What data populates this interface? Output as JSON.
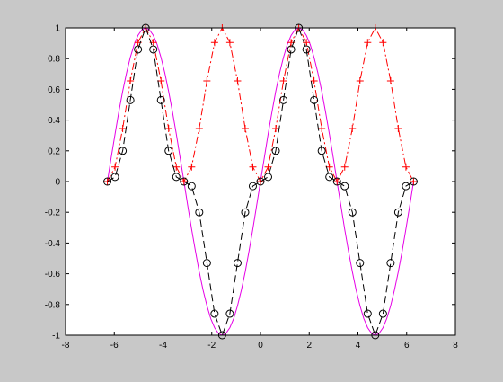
{
  "chart_data": {
    "type": "line",
    "title": "",
    "xlabel": "",
    "ylabel": "",
    "xlim": [
      -8,
      8
    ],
    "ylim": [
      -1,
      1
    ],
    "xticks": [
      -8,
      -6,
      -4,
      -2,
      0,
      2,
      4,
      6,
      8
    ],
    "yticks": [
      -1,
      -0.8,
      -0.6,
      -0.4,
      -0.2,
      0,
      0.2,
      0.4,
      0.6,
      0.8,
      1
    ],
    "xtick_labels": [
      "-8",
      "-6",
      "-4",
      "-2",
      "0",
      "2",
      "4",
      "6",
      "8"
    ],
    "ytick_labels": [
      "-1",
      "-0.8",
      "-0.6",
      "-0.4",
      "-0.2",
      "0",
      "0.2",
      "0.4",
      "0.6",
      "0.8",
      "1"
    ],
    "grid": false,
    "legend": "none",
    "series": [
      {
        "style": "solid",
        "marker": "none",
        "color": "#e600e6",
        "x": [
          -6.283,
          -6.126,
          -5.969,
          -5.812,
          -5.655,
          -5.498,
          -5.341,
          -5.184,
          -5.027,
          -4.869,
          -4.712,
          -4.555,
          -4.398,
          -4.241,
          -4.084,
          -3.927,
          -3.77,
          -3.613,
          -3.456,
          -3.299,
          -3.142,
          -2.985,
          -2.827,
          -2.67,
          -2.513,
          -2.356,
          -2.199,
          -2.042,
          -1.885,
          -1.728,
          -1.571,
          -1.414,
          -1.257,
          -1.1,
          -0.942,
          -0.785,
          -0.628,
          -0.471,
          -0.314,
          -0.157,
          0,
          0.157,
          0.314,
          0.471,
          0.628,
          0.785,
          0.942,
          1.1,
          1.257,
          1.414,
          1.571,
          1.728,
          1.885,
          2.042,
          2.199,
          2.356,
          2.513,
          2.67,
          2.827,
          2.985,
          3.142,
          3.299,
          3.456,
          3.613,
          3.77,
          3.927,
          4.084,
          4.241,
          4.398,
          4.555,
          4.712,
          4.869,
          5.027,
          5.184,
          5.341,
          5.498,
          5.655,
          5.812,
          5.969,
          6.126,
          6.283
        ],
        "y": [
          0,
          0.156,
          0.309,
          0.454,
          0.588,
          0.707,
          0.809,
          0.891,
          0.951,
          0.988,
          1,
          0.988,
          0.951,
          0.891,
          0.809,
          0.707,
          0.588,
          0.454,
          0.309,
          0.156,
          0,
          -0.156,
          -0.309,
          -0.454,
          -0.588,
          -0.707,
          -0.809,
          -0.891,
          -0.951,
          -0.988,
          -1,
          -0.988,
          -0.951,
          -0.891,
          -0.809,
          -0.707,
          -0.588,
          -0.454,
          -0.309,
          -0.156,
          0,
          0.156,
          0.309,
          0.454,
          0.588,
          0.707,
          0.809,
          0.891,
          0.951,
          0.988,
          1,
          0.988,
          0.951,
          0.891,
          0.809,
          0.707,
          0.588,
          0.454,
          0.309,
          0.156,
          0,
          -0.156,
          -0.309,
          -0.454,
          -0.588,
          -0.707,
          -0.809,
          -0.891,
          -0.951,
          -0.988,
          -1,
          -0.988,
          -0.951,
          -0.891,
          -0.809,
          -0.707,
          -0.588,
          -0.454,
          -0.309,
          -0.156,
          0
        ]
      },
      {
        "style": "dashdot",
        "marker": "plus",
        "color": "#ff0000",
        "x": [
          -6.283,
          -5.969,
          -5.655,
          -5.341,
          -5.027,
          -4.712,
          -4.398,
          -4.084,
          -3.77,
          -3.456,
          -3.142,
          -2.827,
          -2.513,
          -2.199,
          -1.885,
          -1.571,
          -1.257,
          -0.942,
          -0.628,
          -0.314,
          0,
          0.314,
          0.628,
          0.942,
          1.257,
          1.571,
          1.885,
          2.199,
          2.513,
          2.827,
          3.142,
          3.456,
          3.77,
          4.084,
          4.398,
          4.712,
          5.027,
          5.341,
          5.655,
          5.969,
          6.283
        ],
        "y": [
          0,
          0.095,
          0.345,
          0.655,
          0.905,
          1,
          0.905,
          0.655,
          0.345,
          0.095,
          0,
          0.095,
          0.345,
          0.655,
          0.905,
          1,
          0.905,
          0.655,
          0.345,
          0.095,
          0,
          0.095,
          0.345,
          0.655,
          0.905,
          1,
          0.905,
          0.655,
          0.345,
          0.095,
          0,
          0.095,
          0.345,
          0.655,
          0.905,
          1,
          0.905,
          0.655,
          0.345,
          0.095,
          0
        ]
      },
      {
        "style": "dashed",
        "marker": "circle",
        "color": "#000000",
        "x": [
          -6.283,
          -5.969,
          -5.655,
          -5.341,
          -5.027,
          -4.712,
          -4.398,
          -4.084,
          -3.77,
          -3.456,
          -3.142,
          -2.827,
          -2.513,
          -2.199,
          -1.885,
          -1.571,
          -1.257,
          -0.942,
          -0.628,
          -0.314,
          0,
          0.314,
          0.628,
          0.942,
          1.257,
          1.571,
          1.885,
          2.199,
          2.513,
          2.827,
          3.142,
          3.456,
          3.77,
          4.084,
          4.398,
          4.712,
          5.027,
          5.341,
          5.655,
          5.969,
          6.283
        ],
        "y": [
          0,
          0.03,
          0.2,
          0.53,
          0.86,
          1,
          0.86,
          0.53,
          0.2,
          0.03,
          0,
          -0.03,
          -0.2,
          -0.53,
          -0.86,
          -1,
          -0.86,
          -0.53,
          -0.2,
          -0.03,
          0,
          0.03,
          0.2,
          0.53,
          0.86,
          1,
          0.86,
          0.53,
          0.2,
          0.03,
          0,
          -0.03,
          -0.2,
          -0.53,
          -0.86,
          -1,
          -0.86,
          -0.53,
          -0.2,
          -0.03,
          0
        ]
      }
    ]
  }
}
